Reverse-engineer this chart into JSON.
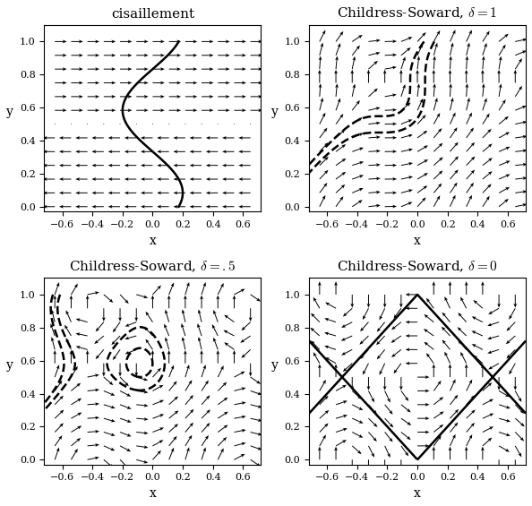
{
  "titles": [
    "cisaillement",
    "Childress-Soward, $\\delta = 1$",
    "Childress-Soward, $\\delta = .5$",
    "Childress-Soward, $\\delta = 0$"
  ],
  "xlim": [
    -0.72,
    0.72
  ],
  "ylim": [
    -0.03,
    1.1
  ],
  "xlabel": "x",
  "ylabel": "y",
  "figsize": [
    5.94,
    5.65
  ],
  "dpi": 100,
  "arrow_color": "black",
  "background": "white",
  "xticks": [
    -0.6,
    -0.4,
    -0.2,
    0,
    0.2,
    0.4,
    0.6
  ],
  "yticks": [
    0,
    0.2,
    0.4,
    0.6,
    0.8,
    1.0
  ],
  "quiver_nx": 13,
  "quiver_ny": 13,
  "arrow_scale": 0.08,
  "contour_lw": 1.8
}
